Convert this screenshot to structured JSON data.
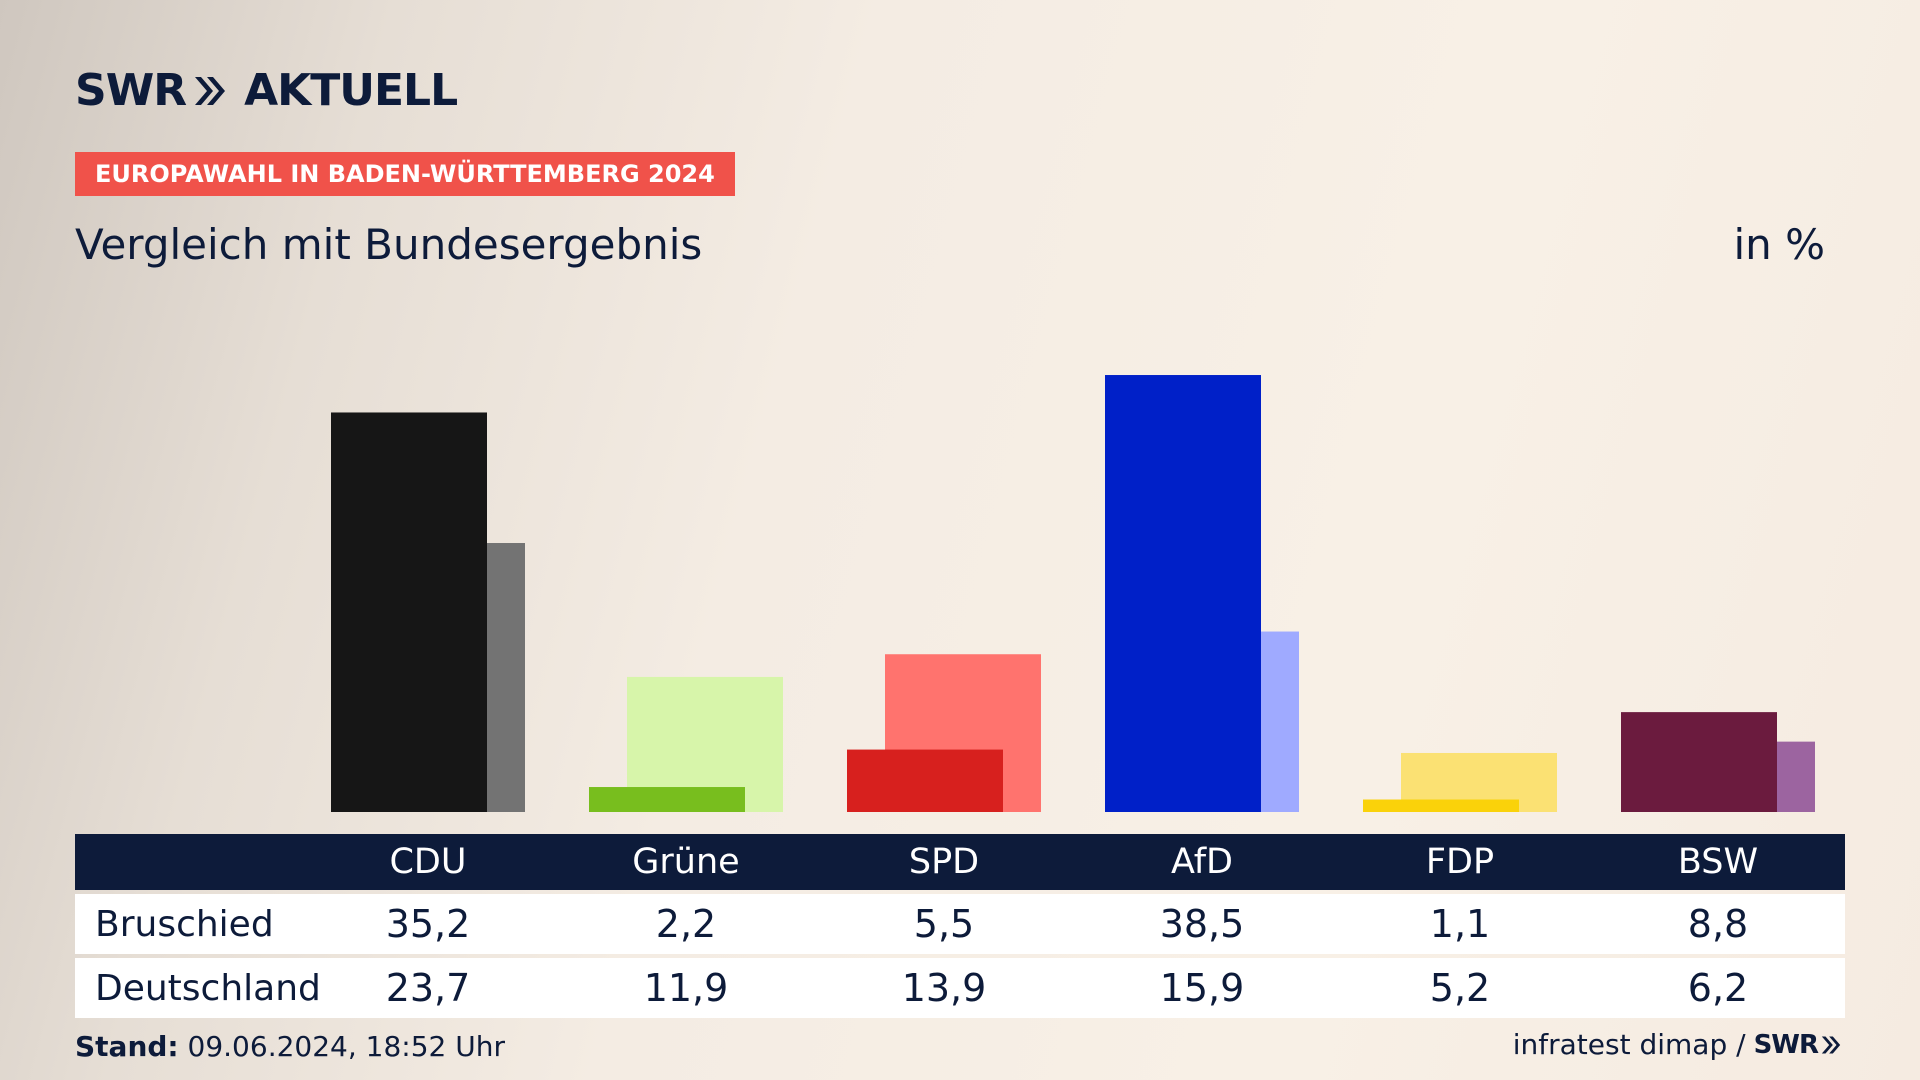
{
  "header": {
    "logo_left": "SWR",
    "logo_right": "AKTUELL",
    "tagline": "EUROPAWAHL IN BADEN-WÜRTTEMBERG 2024",
    "subtitle": "Vergleich mit Bundesergebnis",
    "unit": "in %"
  },
  "table": {
    "row_labels": [
      "Bruschied",
      "Deutschland"
    ]
  },
  "footer": {
    "stand_label": "Stand:",
    "stand_value": "09.06.2024, 18:52 Uhr",
    "source": "infratest dimap /",
    "source_logo": "SWR"
  },
  "colors": {
    "navy": "#0d1b3a",
    "tagline_bg": "#f0524a",
    "CDU": [
      "#161616",
      "#737373"
    ],
    "Grüne": [
      "#78be1e",
      "#d7f5aa"
    ],
    "SPD": [
      "#d7201e",
      "#ff736e"
    ],
    "AfD": [
      "#0020c8",
      "#9faaff"
    ],
    "FDP": [
      "#fad20a",
      "#fbe173"
    ],
    "BSW": [
      "#6b1b3e",
      "#9c64a0"
    ]
  },
  "chart_data": {
    "type": "bar",
    "categories": [
      "CDU",
      "Grüne",
      "SPD",
      "AfD",
      "FDP",
      "BSW"
    ],
    "series": [
      {
        "name": "Bruschied",
        "values": [
          35.2,
          2.2,
          5.5,
          38.5,
          1.1,
          8.8
        ]
      },
      {
        "name": "Deutschland",
        "values": [
          23.7,
          11.9,
          13.9,
          15.9,
          5.2,
          6.2
        ]
      }
    ],
    "value_labels": {
      "Bruschied": [
        "35,2",
        "2,2",
        "5,5",
        "38,5",
        "1,1",
        "8,8"
      ],
      "Deutschland": [
        "23,7",
        "11,9",
        "13,9",
        "15,9",
        "5,2",
        "6,2"
      ]
    },
    "ylim": [
      0,
      40
    ],
    "grid": false
  }
}
